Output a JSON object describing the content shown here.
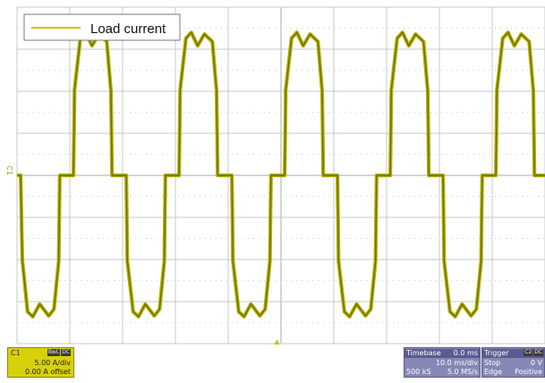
{
  "chart_data": {
    "type": "line",
    "title": "",
    "xlabel": "",
    "ylabel": "",
    "grid": true,
    "legend_position": "top-left",
    "x_unit": "ms",
    "y_unit": "A",
    "xlim": [
      -50,
      50
    ],
    "ylim": [
      -20,
      20
    ],
    "x_divisions": 10,
    "y_divisions": 8,
    "series": [
      {
        "name": "Load current",
        "color": "#c8c400",
        "points": [
          [
            -50,
            0
          ],
          [
            -49.3,
            0
          ],
          [
            -49.0,
            -10.0
          ],
          [
            -48.0,
            -16.2
          ],
          [
            -47.0,
            -16.8
          ],
          [
            -45.7,
            -15.3
          ],
          [
            -44.0,
            -16.7
          ],
          [
            -43.0,
            -15.9
          ],
          [
            -42.1,
            -10.2
          ],
          [
            -41.9,
            0
          ],
          [
            -39.3,
            0
          ],
          [
            -39.1,
            10.2
          ],
          [
            -38.0,
            16.3
          ],
          [
            -37.0,
            17.0
          ],
          [
            -35.8,
            15.4
          ],
          [
            -34.5,
            16.8
          ],
          [
            -33.0,
            15.9
          ],
          [
            -32.2,
            10.0
          ],
          [
            -32.0,
            0
          ],
          [
            -29.3,
            0
          ],
          [
            -29.1,
            -10.2
          ],
          [
            -28.0,
            -16.2
          ],
          [
            -27.0,
            -16.8
          ],
          [
            -25.7,
            -15.3
          ],
          [
            -24.0,
            -16.7
          ],
          [
            -23.0,
            -15.9
          ],
          [
            -22.1,
            -10.2
          ],
          [
            -21.9,
            0
          ],
          [
            -19.3,
            0
          ],
          [
            -19.1,
            10.2
          ],
          [
            -18.0,
            16.3
          ],
          [
            -17.0,
            17.0
          ],
          [
            -15.8,
            15.4
          ],
          [
            -14.5,
            16.8
          ],
          [
            -13.0,
            15.9
          ],
          [
            -12.2,
            10.0
          ],
          [
            -12.0,
            0
          ],
          [
            -9.3,
            0
          ],
          [
            -9.1,
            -10.2
          ],
          [
            -8.0,
            -16.2
          ],
          [
            -7.0,
            -16.8
          ],
          [
            -5.7,
            -15.3
          ],
          [
            -4.0,
            -16.7
          ],
          [
            -3.0,
            -15.9
          ],
          [
            -2.1,
            -10.2
          ],
          [
            -1.9,
            0
          ],
          [
            0.7,
            0
          ],
          [
            0.9,
            10.2
          ],
          [
            2.0,
            16.3
          ],
          [
            3.0,
            17.0
          ],
          [
            4.2,
            15.4
          ],
          [
            5.5,
            16.8
          ],
          [
            7.0,
            15.9
          ],
          [
            7.8,
            10.0
          ],
          [
            8.0,
            0
          ],
          [
            10.7,
            0
          ],
          [
            10.9,
            -10.2
          ],
          [
            12.0,
            -16.2
          ],
          [
            13.0,
            -16.8
          ],
          [
            14.3,
            -15.3
          ],
          [
            16.0,
            -16.7
          ],
          [
            17.0,
            -15.9
          ],
          [
            17.9,
            -10.2
          ],
          [
            18.1,
            0
          ],
          [
            20.7,
            0
          ],
          [
            20.9,
            10.2
          ],
          [
            22.0,
            16.3
          ],
          [
            23.0,
            17.0
          ],
          [
            24.2,
            15.4
          ],
          [
            25.5,
            16.8
          ],
          [
            27.0,
            15.9
          ],
          [
            27.8,
            10.0
          ],
          [
            28.0,
            0
          ],
          [
            30.7,
            0
          ],
          [
            30.9,
            -10.2
          ],
          [
            32.0,
            -16.2
          ],
          [
            33.0,
            -16.8
          ],
          [
            34.3,
            -15.3
          ],
          [
            36.0,
            -16.7
          ],
          [
            37.0,
            -15.9
          ],
          [
            37.9,
            -10.2
          ],
          [
            38.1,
            0
          ],
          [
            40.7,
            0
          ],
          [
            40.9,
            10.2
          ],
          [
            42.0,
            16.3
          ],
          [
            43.0,
            17.0
          ],
          [
            44.2,
            15.4
          ],
          [
            45.5,
            16.8
          ],
          [
            47.0,
            15.9
          ],
          [
            47.8,
            10.0
          ],
          [
            48.0,
            0
          ],
          [
            50,
            0
          ]
        ]
      }
    ]
  },
  "markers": {
    "channel_marker": "C1"
  },
  "channel_panel": {
    "name": "C1",
    "tag1": "BwL",
    "tag2": "DC",
    "scale": "5.00 A/div",
    "offset": "0.00 A offset"
  },
  "timebase_panel": {
    "label": "Timebase",
    "delay": "0.0 ms",
    "scale": "10.0 ms/div",
    "samples": "500 kS",
    "rate": "5.0 MS/s"
  },
  "trigger_panel": {
    "label": "Trigger",
    "tag1": "C2",
    "tag2": "DC",
    "mode": "Stop",
    "level": "0 V",
    "type": "Edge",
    "slope": "Positive"
  }
}
